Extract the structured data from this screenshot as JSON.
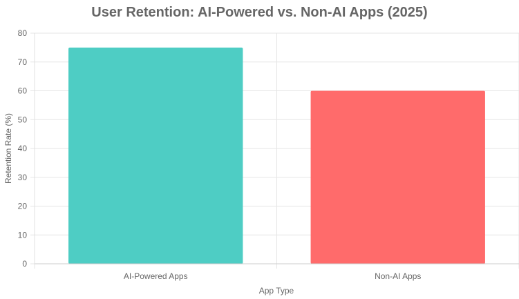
{
  "chart_data": {
    "type": "bar",
    "title": "User Retention: AI-Powered vs. Non-AI Apps (2025)",
    "xlabel": "App Type",
    "ylabel": "Retention Rate (%)",
    "categories": [
      "AI-Powered Apps",
      "Non-AI Apps"
    ],
    "values": [
      75,
      60
    ],
    "colors": [
      "#4ECDC4",
      "#FF6B6B"
    ],
    "ylim": [
      0,
      80
    ],
    "yticks": [
      0,
      10,
      20,
      30,
      40,
      50,
      60,
      70,
      80
    ],
    "grid": true,
    "legend": "none"
  }
}
